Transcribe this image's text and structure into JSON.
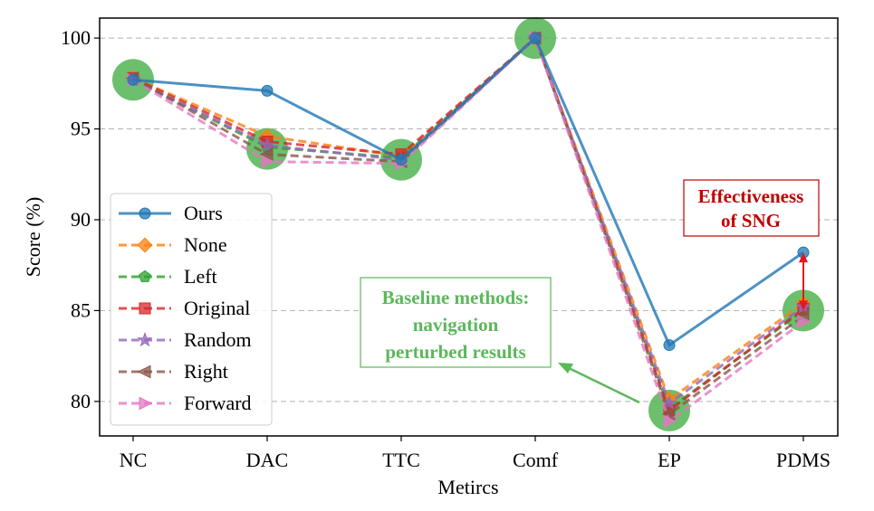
{
  "chart_data": {
    "type": "line",
    "title": "",
    "xlabel": "Metircs",
    "ylabel": "Score (%)",
    "categories": [
      "NC",
      "DAC",
      "TTC",
      "Comf",
      "EP",
      "PDMS"
    ],
    "ylim": [
      78.1,
      101.1
    ],
    "yticks": [
      80,
      85,
      90,
      95,
      100
    ],
    "grid": "horizontal dashed",
    "legend_position": "lower-left",
    "series": [
      {
        "name": "Ours",
        "values": [
          97.7,
          97.1,
          93.3,
          100.0,
          83.1,
          88.2
        ],
        "color": "#1f77b4",
        "marker": "circle",
        "style": "solid"
      },
      {
        "name": "None",
        "values": [
          97.8,
          94.6,
          93.5,
          100.0,
          80.1,
          85.4
        ],
        "color": "#ff7f0e",
        "marker": "diamond",
        "style": "dashed"
      },
      {
        "name": "Left",
        "values": [
          97.7,
          94.0,
          93.4,
          100.0,
          79.6,
          85.0
        ],
        "color": "#2ca02c",
        "marker": "pentagon",
        "style": "dashed"
      },
      {
        "name": "Original",
        "values": [
          97.8,
          94.3,
          93.6,
          100.0,
          79.5,
          85.1
        ],
        "color": "#d62728",
        "marker": "square",
        "style": "dashed"
      },
      {
        "name": "Random",
        "values": [
          97.7,
          94.1,
          93.3,
          100.0,
          79.9,
          85.2
        ],
        "color": "#9467bd",
        "marker": "star",
        "style": "dashed"
      },
      {
        "name": "Right",
        "values": [
          97.8,
          93.6,
          93.2,
          100.0,
          79.3,
          84.7
        ],
        "color": "#8c564b",
        "marker": "triangle-left",
        "style": "dashed"
      },
      {
        "name": "Forward",
        "values": [
          97.7,
          93.2,
          93.1,
          100.0,
          78.9,
          84.4
        ],
        "color": "#e377c2",
        "marker": "triangle-right",
        "style": "dashed"
      }
    ],
    "highlight_points": [
      {
        "category": "NC",
        "value": 97.7
      },
      {
        "category": "DAC",
        "value": 93.9
      },
      {
        "category": "TTC",
        "value": 93.3
      },
      {
        "category": "Comf",
        "value": 100.0
      },
      {
        "category": "EP",
        "value": 79.5
      },
      {
        "category": "PDMS",
        "value": 85.0
      }
    ],
    "annotations": {
      "effectiveness": {
        "lines": [
          "Effectiveness",
          "of SNG"
        ],
        "color": "#c00000"
      },
      "baseline": {
        "lines": [
          "Baseline methods:",
          "navigation",
          "perturbed results"
        ],
        "color": "#5cb85c"
      },
      "sng_arrow": {
        "category": "PDMS",
        "from": 85.0,
        "to": 88.2,
        "color": "#e31a1c"
      }
    },
    "colors": {
      "highlight": "#5cb85c",
      "grid": "#b0b0b0"
    }
  }
}
